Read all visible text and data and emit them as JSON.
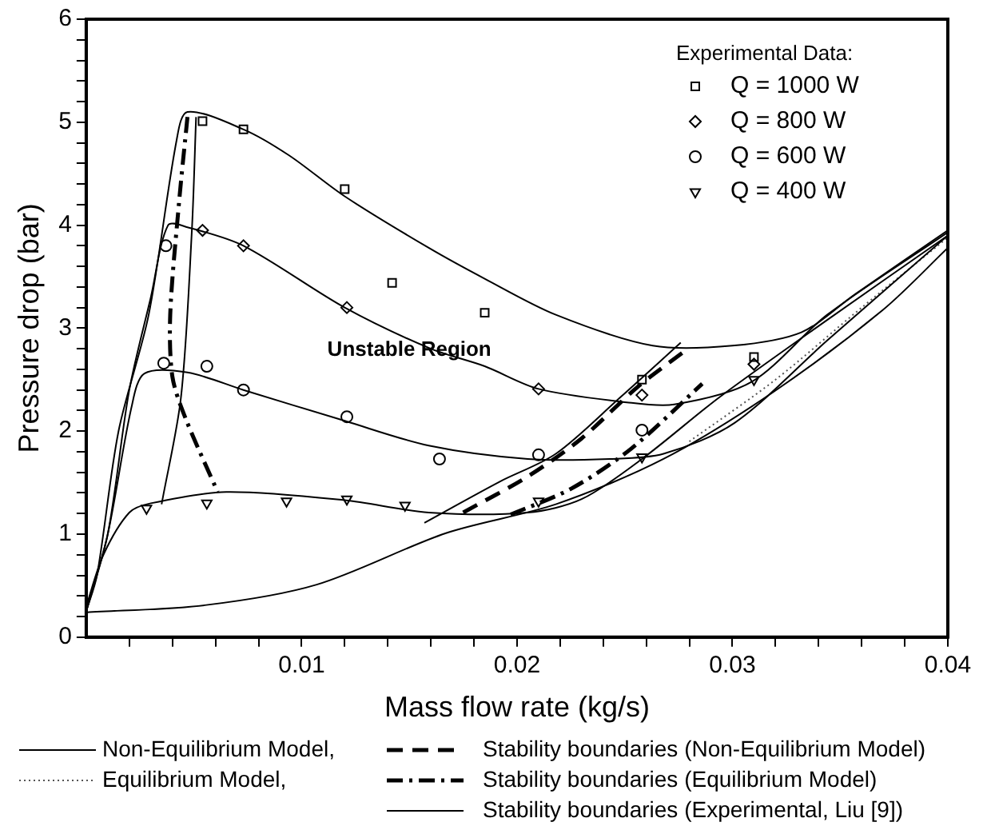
{
  "chart_data": {
    "type": "line",
    "xlabel": "Mass flow rate (kg/s)",
    "ylabel": "Pressure drop (bar)",
    "legend_title": "Experimental Data:",
    "legend": "bottom",
    "grid": false,
    "xlim": [
      0,
      0.04
    ],
    "ylim": [
      0,
      6
    ],
    "xticks": [
      {
        "value": 0.002,
        "label": null
      },
      {
        "value": 0.004,
        "label": null
      },
      {
        "value": 0.006,
        "label": null
      },
      {
        "value": 0.008,
        "label": null
      },
      0.01,
      {
        "value": 0.012,
        "label": null
      },
      {
        "value": 0.014,
        "label": null
      },
      {
        "value": 0.016,
        "label": null
      },
      {
        "value": 0.018,
        "label": null
      },
      0.02,
      {
        "value": 0.022,
        "label": null
      },
      {
        "value": 0.024,
        "label": null
      },
      {
        "value": 0.026,
        "label": null
      },
      {
        "value": 0.028,
        "label": null
      },
      0.03,
      {
        "value": 0.032,
        "label": null
      },
      {
        "value": 0.034,
        "label": null
      },
      {
        "value": 0.036,
        "label": null
      },
      {
        "value": 0.038,
        "label": null
      },
      0.04
    ],
    "yticks": [
      0,
      {
        "value": 0.2,
        "label": null
      },
      {
        "value": 0.4,
        "label": null
      },
      {
        "value": 0.6,
        "label": null
      },
      {
        "value": 0.8,
        "label": null
      },
      1,
      {
        "value": 1.2,
        "label": null
      },
      {
        "value": 1.4,
        "label": null
      },
      {
        "value": 1.6,
        "label": null
      },
      {
        "value": 1.8,
        "label": null
      },
      2,
      {
        "value": 2.2,
        "label": null
      },
      {
        "value": 2.4,
        "label": null
      },
      {
        "value": 2.6,
        "label": null
      },
      {
        "value": 2.8,
        "label": null
      },
      3,
      {
        "value": 3.2,
        "label": null
      },
      {
        "value": 3.4,
        "label": null
      },
      {
        "value": 3.6,
        "label": null
      },
      {
        "value": 3.8,
        "label": null
      },
      4,
      {
        "value": 4.2,
        "label": null
      },
      {
        "value": 4.4,
        "label": null
      },
      {
        "value": 4.6,
        "label": null
      },
      {
        "value": 4.8,
        "label": null
      },
      5,
      {
        "value": 5.2,
        "label": null
      },
      {
        "value": 5.4,
        "label": null
      },
      {
        "value": 5.6,
        "label": null
      },
      {
        "value": 5.8,
        "label": null
      },
      6
    ],
    "annotations": [
      "Unstable Region"
    ],
    "series": [
      {
        "name": "Non-Equilibrium Model,",
        "type": "line",
        "color": "#000000",
        "line_style": "solid",
        "x": [
          0,
          0.0005,
          0.0015,
          0.0029,
          0.0042,
          0.0047,
          0.0073,
          0.0094,
          0.012,
          0.0159,
          0.0185,
          0.0218,
          0.0263,
          0.03,
          0.0332,
          0.0357,
          0.04
        ],
        "values": [
          0.25,
          0.6,
          2.0,
          3.13,
          4.83,
          5.1,
          4.93,
          4.68,
          4.28,
          3.78,
          3.48,
          3.13,
          2.83,
          2.83,
          2.96,
          3.33,
          3.95
        ]
      },
      {
        "type": "line",
        "color": "#000000",
        "line_style": "solid",
        "x": [
          0,
          0.001,
          0.002,
          0.003,
          0.0038,
          0.0047,
          0.0073,
          0.012,
          0.016,
          0.0185,
          0.021,
          0.0251,
          0.0273,
          0.0309,
          0.0344,
          0.04
        ],
        "values": [
          0.25,
          1.0,
          2.4,
          3.3,
          4.0,
          3.98,
          3.8,
          3.2,
          2.8,
          2.63,
          2.41,
          2.28,
          2.26,
          2.48,
          3.13,
          3.93
        ]
      },
      {
        "type": "line",
        "color": "#000000",
        "line_style": "solid",
        "x": [
          0,
          0.001,
          0.0021,
          0.0027,
          0.0047,
          0.0073,
          0.012,
          0.0159,
          0.0205,
          0.0243,
          0.0268,
          0.0301,
          0.0344,
          0.04
        ],
        "values": [
          0.25,
          1.0,
          2.23,
          2.56,
          2.57,
          2.4,
          2.1,
          1.86,
          1.73,
          1.73,
          1.78,
          2.08,
          2.88,
          3.9
        ]
      },
      {
        "type": "line",
        "color": "#000000",
        "line_style": "solid",
        "x": [
          0,
          0.0008,
          0.002,
          0.003,
          0.0065,
          0.012,
          0.0159,
          0.0205,
          0.023,
          0.0258,
          0.0294,
          0.0344,
          0.04
        ],
        "values": [
          0.3,
          0.8,
          1.21,
          1.3,
          1.41,
          1.33,
          1.21,
          1.21,
          1.34,
          1.73,
          2.33,
          3.08,
          3.9
        ]
      },
      {
        "type": "line",
        "color": "#000000",
        "line_style": "solid",
        "x": [
          0,
          0.0055,
          0.0107,
          0.0167,
          0.0218,
          0.0268,
          0.0319,
          0.037,
          0.04
        ],
        "values": [
          0.24,
          0.31,
          0.51,
          1.01,
          1.29,
          1.73,
          2.38,
          3.18,
          3.78
        ]
      },
      {
        "name": "Equilibrium Model,",
        "type": "line",
        "color": "#555555",
        "line_style": "dotted",
        "x": [
          0.028,
          0.032,
          0.036,
          0.04
        ],
        "values": [
          1.9,
          2.5,
          3.2,
          3.88
        ]
      },
      {
        "name": "Stability boundaries (Non-Equilibrium Model)",
        "type": "line",
        "color": "#000000",
        "line_style": "dashed",
        "x": [
          0.0175,
          0.0205,
          0.023,
          0.0256,
          0.0278
        ],
        "values": [
          1.21,
          1.56,
          1.93,
          2.43,
          2.78
        ]
      },
      {
        "name": "Stability boundaries (Equilibrium Model)",
        "type": "line",
        "color": "#000000",
        "line_style": "dashdot",
        "x": [
          0.0047,
          0.0043,
          0.0039,
          0.004,
          0.0046,
          0.0061
        ],
        "values": [
          5.05,
          4.2,
          3.13,
          2.53,
          2.13,
          1.41
        ]
      },
      {
        "type": "line",
        "color": "#000000",
        "line_style": "dashdot",
        "x": [
          0.0197,
          0.0225,
          0.0253,
          0.0286
        ],
        "values": [
          1.19,
          1.44,
          1.83,
          2.46
        ]
      },
      {
        "name": "Stability boundaries (Experimental, Liu [9])",
        "type": "line",
        "color": "#000000",
        "line_style": "solid",
        "x": [
          0.0035,
          0.0044,
          0.0049,
          0.0051
        ],
        "values": [
          1.29,
          2.33,
          3.93,
          5.05
        ]
      },
      {
        "type": "line",
        "color": "#000000",
        "line_style": "solid",
        "x": [
          0.0157,
          0.0192,
          0.0218,
          0.0248,
          0.0276
        ],
        "values": [
          1.11,
          1.51,
          1.78,
          2.33,
          2.86
        ]
      },
      {
        "name": "Q = 1000 W",
        "type": "scatter",
        "color": "#000000",
        "marker": "square",
        "x": [
          0.0054,
          0.0073,
          0.012,
          0.0142,
          0.0185,
          0.0258,
          0.031
        ],
        "values": [
          5.01,
          4.93,
          4.35,
          3.44,
          3.15,
          2.5,
          2.72
        ]
      },
      {
        "name": "Q = 800 W",
        "type": "scatter",
        "color": "#000000",
        "marker": "diamond",
        "x": [
          0.0054,
          0.0073,
          0.0121,
          0.021,
          0.0258,
          0.031
        ],
        "values": [
          3.95,
          3.8,
          3.2,
          2.41,
          2.35,
          2.65
        ]
      },
      {
        "name": "Q = 600 W",
        "type": "scatter",
        "color": "#000000",
        "marker": "circle",
        "x": [
          0.0037,
          0.0036,
          0.0056,
          0.0073,
          0.0121,
          0.0164,
          0.021,
          0.0258
        ],
        "values": [
          3.8,
          2.66,
          2.63,
          2.4,
          2.14,
          1.73,
          1.77,
          2.01
        ]
      },
      {
        "name": "Q = 400 W",
        "type": "scatter",
        "color": "#000000",
        "marker": "triangle",
        "x": [
          0.0028,
          0.0056,
          0.0093,
          0.0121,
          0.0148,
          0.021,
          0.0258,
          0.031
        ],
        "values": [
          1.25,
          1.3,
          1.32,
          1.34,
          1.28,
          1.32,
          1.75,
          2.5
        ]
      }
    ]
  }
}
